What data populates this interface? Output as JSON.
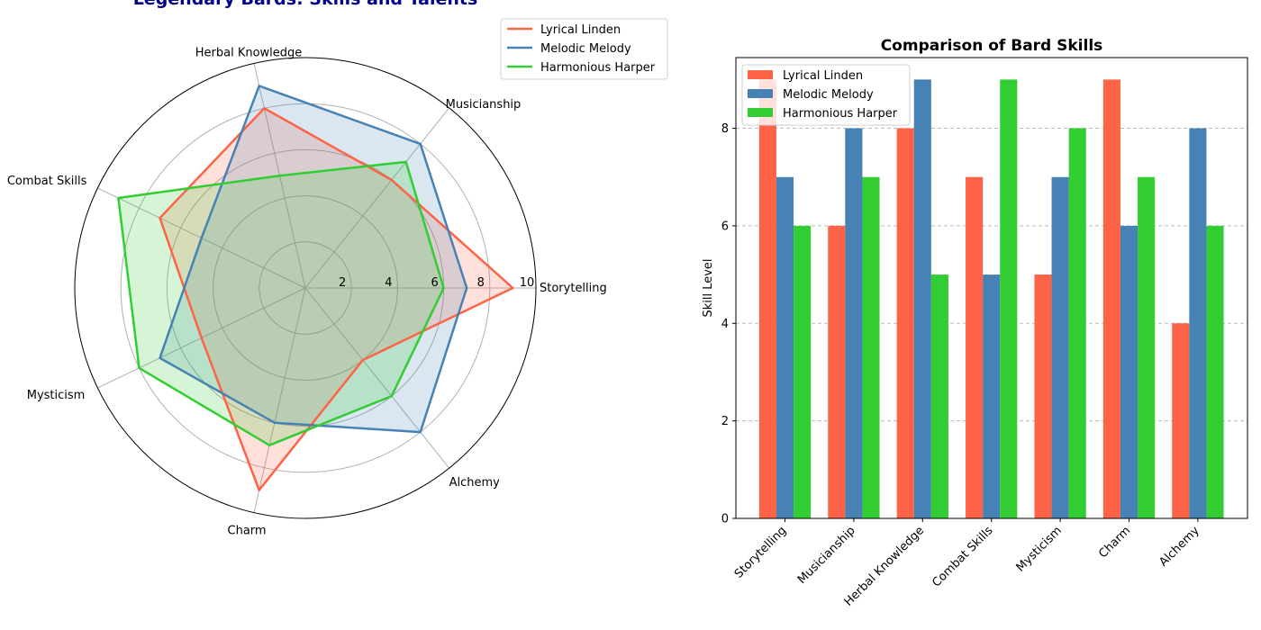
{
  "suptitle": "Legendary Bards: Skills and Talents",
  "series_colors": [
    "#FF6347",
    "#4682B4",
    "#32CD32"
  ],
  "chart_data": [
    {
      "type": "radar",
      "title": "",
      "categories": [
        "Storytelling",
        "Musicianship",
        "Herbal Knowledge",
        "Combat Skills",
        "Mysticism",
        "Charm",
        "Alchemy"
      ],
      "radial_ticks": [
        2,
        4,
        6,
        8,
        10
      ],
      "rlim": [
        0,
        10
      ],
      "grid": true,
      "legend": "top-right",
      "series": [
        {
          "name": "Lyrical Linden",
          "values": [
            9,
            6,
            8,
            7,
            5,
            9,
            4
          ]
        },
        {
          "name": "Melodic Melody",
          "values": [
            7,
            8,
            9,
            5,
            7,
            6,
            8
          ]
        },
        {
          "name": "Harmonious Harper",
          "values": [
            6,
            7,
            5,
            9,
            8,
            7,
            6
          ]
        }
      ]
    },
    {
      "type": "bar",
      "title": "Comparison of Bard Skills",
      "xlabel": "",
      "ylabel": "Skill Level",
      "ylim": [
        0,
        9.45
      ],
      "yticks": [
        0,
        2,
        4,
        6,
        8
      ],
      "grid": "y-dashed",
      "legend": "top-left",
      "categories": [
        "Storytelling",
        "Musicianship",
        "Herbal Knowledge",
        "Combat Skills",
        "Mysticism",
        "Charm",
        "Alchemy"
      ],
      "series": [
        {
          "name": "Lyrical Linden",
          "values": [
            9,
            6,
            8,
            7,
            5,
            9,
            4
          ]
        },
        {
          "name": "Melodic Melody",
          "values": [
            7,
            8,
            9,
            5,
            7,
            6,
            8
          ]
        },
        {
          "name": "Harmonious Harper",
          "values": [
            6,
            7,
            5,
            9,
            8,
            7,
            6
          ]
        }
      ]
    }
  ]
}
